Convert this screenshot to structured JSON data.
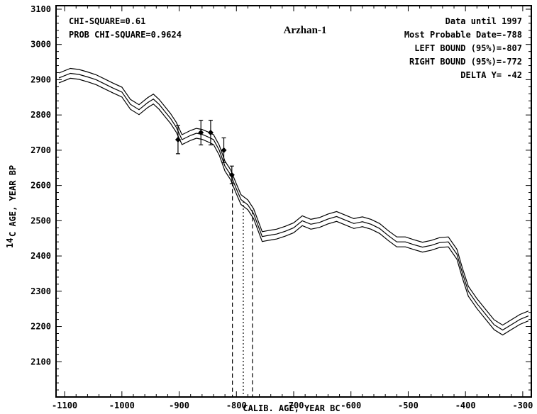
{
  "chart_data": {
    "type": "line",
    "title": "Arzhan-1",
    "xlabel": "CALIB. AGE, YEAR BC",
    "ylabel_superscript": "14",
    "ylabel": "C AGE, YEAR BP",
    "xlim": [
      -1115,
      -285
    ],
    "ylim": [
      2000,
      3110
    ],
    "xticks": [
      -1100,
      -1000,
      -900,
      -800,
      -700,
      -600,
      -500,
      -400,
      -300
    ],
    "yticks": [
      2100,
      2200,
      2300,
      2400,
      2500,
      2600,
      2700,
      2800,
      2900,
      3000,
      3100
    ],
    "grid": false,
    "stats_left": [
      "CHI-SQUARE=0.61",
      "PROB CHI-SQUARE=0.9624"
    ],
    "stats_right": [
      "Data until 1997",
      "Most Probable Date=-788",
      "LEFT BOUND (95%)=-807",
      "RIGHT BOUND (95%)=-772",
      "DELTA Y= -42"
    ],
    "series": [
      {
        "role": "calibration-curve",
        "band_halfwidth": 14,
        "x": [
          -1110,
          -1090,
          -1075,
          -1060,
          -1045,
          -1030,
          -1015,
          -1000,
          -985,
          -970,
          -955,
          -945,
          -935,
          -925,
          -915,
          -905,
          -895,
          -880,
          -870,
          -860,
          -850,
          -840,
          -830,
          -820,
          -810,
          -800,
          -792,
          -780,
          -770,
          -755,
          -745,
          -730,
          -715,
          -700,
          -685,
          -670,
          -655,
          -640,
          -625,
          -610,
          -595,
          -580,
          -565,
          -550,
          -535,
          -520,
          -505,
          -490,
          -475,
          -460,
          -445,
          -430,
          -415,
          -405,
          -395,
          -380,
          -365,
          -350,
          -335,
          -320,
          -305,
          -290
        ],
        "y": [
          2905,
          2918,
          2915,
          2908,
          2900,
          2888,
          2876,
          2865,
          2830,
          2815,
          2835,
          2845,
          2830,
          2810,
          2790,
          2765,
          2730,
          2742,
          2748,
          2745,
          2738,
          2730,
          2700,
          2655,
          2630,
          2590,
          2560,
          2545,
          2520,
          2455,
          2458,
          2462,
          2470,
          2480,
          2500,
          2490,
          2495,
          2505,
          2512,
          2502,
          2492,
          2497,
          2490,
          2478,
          2458,
          2440,
          2440,
          2432,
          2425,
          2430,
          2438,
          2440,
          2405,
          2350,
          2300,
          2265,
          2235,
          2205,
          2190,
          2205,
          2220,
          2230
        ]
      }
    ],
    "measurements": [
      {
        "x": -902,
        "y": 2730,
        "err": 40
      },
      {
        "x": -862,
        "y": 2750,
        "err": 35
      },
      {
        "x": -845,
        "y": 2750,
        "err": 35
      },
      {
        "x": -822,
        "y": 2700,
        "err": 35
      },
      {
        "x": -808,
        "y": 2630,
        "err": 25
      }
    ],
    "bounds": [
      {
        "label": "LEFT BOUND (95%)",
        "x": -807,
        "y_top": 2630,
        "style": "dashed"
      },
      {
        "label": "Most Probable Date",
        "x": -788,
        "y_top": 2555,
        "style": "dotted"
      },
      {
        "label": "RIGHT BOUND (95%)",
        "x": -772,
        "y_top": 2530,
        "style": "dashed"
      }
    ]
  }
}
